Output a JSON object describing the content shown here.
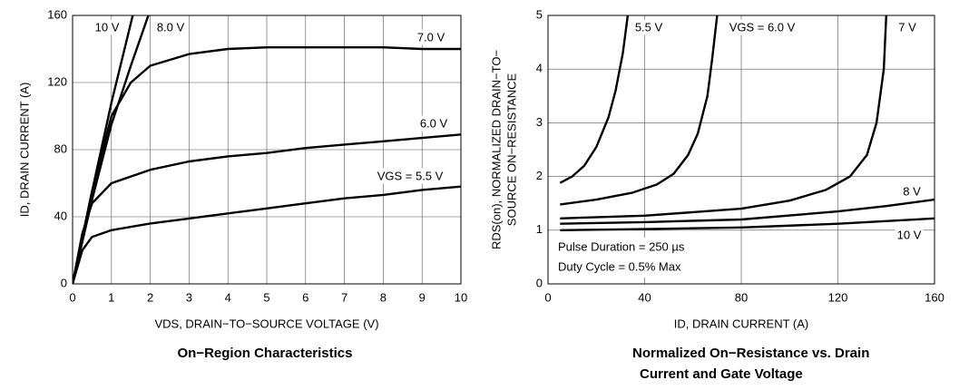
{
  "chart_data": [
    {
      "type": "line",
      "title": "On−Region Characteristics",
      "xlabel": "VDS, DRAIN−TO−SOURCE VOLTAGE (V)",
      "ylabel": "ID, DRAIN CURRENT (A)",
      "xlim": [
        0,
        10
      ],
      "ylim": [
        0,
        160
      ],
      "xticks": [
        0,
        1,
        2,
        3,
        4,
        5,
        6,
        7,
        8,
        9,
        10
      ],
      "yticks": [
        0,
        40,
        80,
        120,
        160
      ],
      "grid": true,
      "series": [
        {
          "name": "10 V",
          "color": "#000000",
          "x": [
            0,
            0.5,
            1,
            1.55
          ],
          "values": [
            0,
            55,
            108,
            160
          ]
        },
        {
          "name": "8.0 V",
          "color": "#000000",
          "x": [
            0,
            0.5,
            1,
            1.5,
            1.95
          ],
          "values": [
            0,
            50,
            95,
            130,
            160
          ]
        },
        {
          "name": "7.0 V",
          "color": "#000000",
          "x": [
            0,
            0.5,
            1,
            1.5,
            2,
            3,
            4,
            5,
            6,
            7,
            8,
            9,
            10
          ],
          "values": [
            0,
            55,
            100,
            120,
            130,
            137,
            140,
            141,
            141,
            141,
            141,
            140,
            140
          ]
        },
        {
          "name": "6.0 V",
          "color": "#000000",
          "x": [
            0,
            0.25,
            0.5,
            1,
            2,
            3,
            4,
            5,
            6,
            7,
            8,
            9,
            10
          ],
          "values": [
            0,
            30,
            48,
            60,
            68,
            73,
            76,
            78,
            81,
            83,
            85,
            87,
            89
          ]
        },
        {
          "name": "VGS = 5.5 V",
          "color": "#000000",
          "x": [
            0,
            0.25,
            0.5,
            1,
            2,
            3,
            4,
            5,
            6,
            7,
            8,
            9,
            10
          ],
          "values": [
            0,
            20,
            28,
            32,
            36,
            39,
            42,
            45,
            48,
            51,
            53,
            56,
            58
          ]
        }
      ]
    },
    {
      "type": "line",
      "title": [
        "Normalized On−Resistance vs. Drain",
        "Current and Gate Voltage"
      ],
      "xlabel": "ID, DRAIN CURRENT (A)",
      "ylabel": [
        "RDS(on), NORMALIZED DRAIN−TO−",
        "SOURCE ON−RESISTANCE"
      ],
      "xlim": [
        0,
        160
      ],
      "ylim": [
        0,
        5
      ],
      "xticks": [
        0,
        40,
        80,
        120,
        160
      ],
      "yticks": [
        0,
        1,
        2,
        3,
        4,
        5
      ],
      "grid": true,
      "annotations": [
        "Pulse Duration = 250 µs",
        "Duty Cycle = 0.5% Max"
      ],
      "series": [
        {
          "name": "5.5 V",
          "color": "#000000",
          "x": [
            5,
            10,
            15,
            20,
            25,
            28,
            31,
            33
          ],
          "values": [
            1.88,
            2.0,
            2.2,
            2.55,
            3.1,
            3.6,
            4.3,
            5.0
          ]
        },
        {
          "name": "VGS = 6.0 V",
          "color": "#000000",
          "x": [
            5,
            20,
            35,
            45,
            52,
            58,
            62,
            66,
            68,
            70
          ],
          "values": [
            1.48,
            1.57,
            1.7,
            1.85,
            2.05,
            2.4,
            2.8,
            3.5,
            4.2,
            5.0
          ]
        },
        {
          "name": "7 V",
          "color": "#000000",
          "x": [
            5,
            40,
            80,
            100,
            115,
            125,
            132,
            136,
            139,
            140
          ],
          "values": [
            1.22,
            1.27,
            1.4,
            1.55,
            1.75,
            2.0,
            2.4,
            3.0,
            4.0,
            5.0
          ]
        },
        {
          "name": "8 V",
          "color": "#000000",
          "x": [
            5,
            40,
            80,
            120,
            140,
            160
          ],
          "values": [
            1.12,
            1.15,
            1.2,
            1.35,
            1.45,
            1.57
          ]
        },
        {
          "name": "10 V",
          "color": "#000000",
          "x": [
            5,
            40,
            80,
            120,
            160
          ],
          "values": [
            1.0,
            1.02,
            1.05,
            1.12,
            1.22
          ]
        }
      ]
    }
  ]
}
